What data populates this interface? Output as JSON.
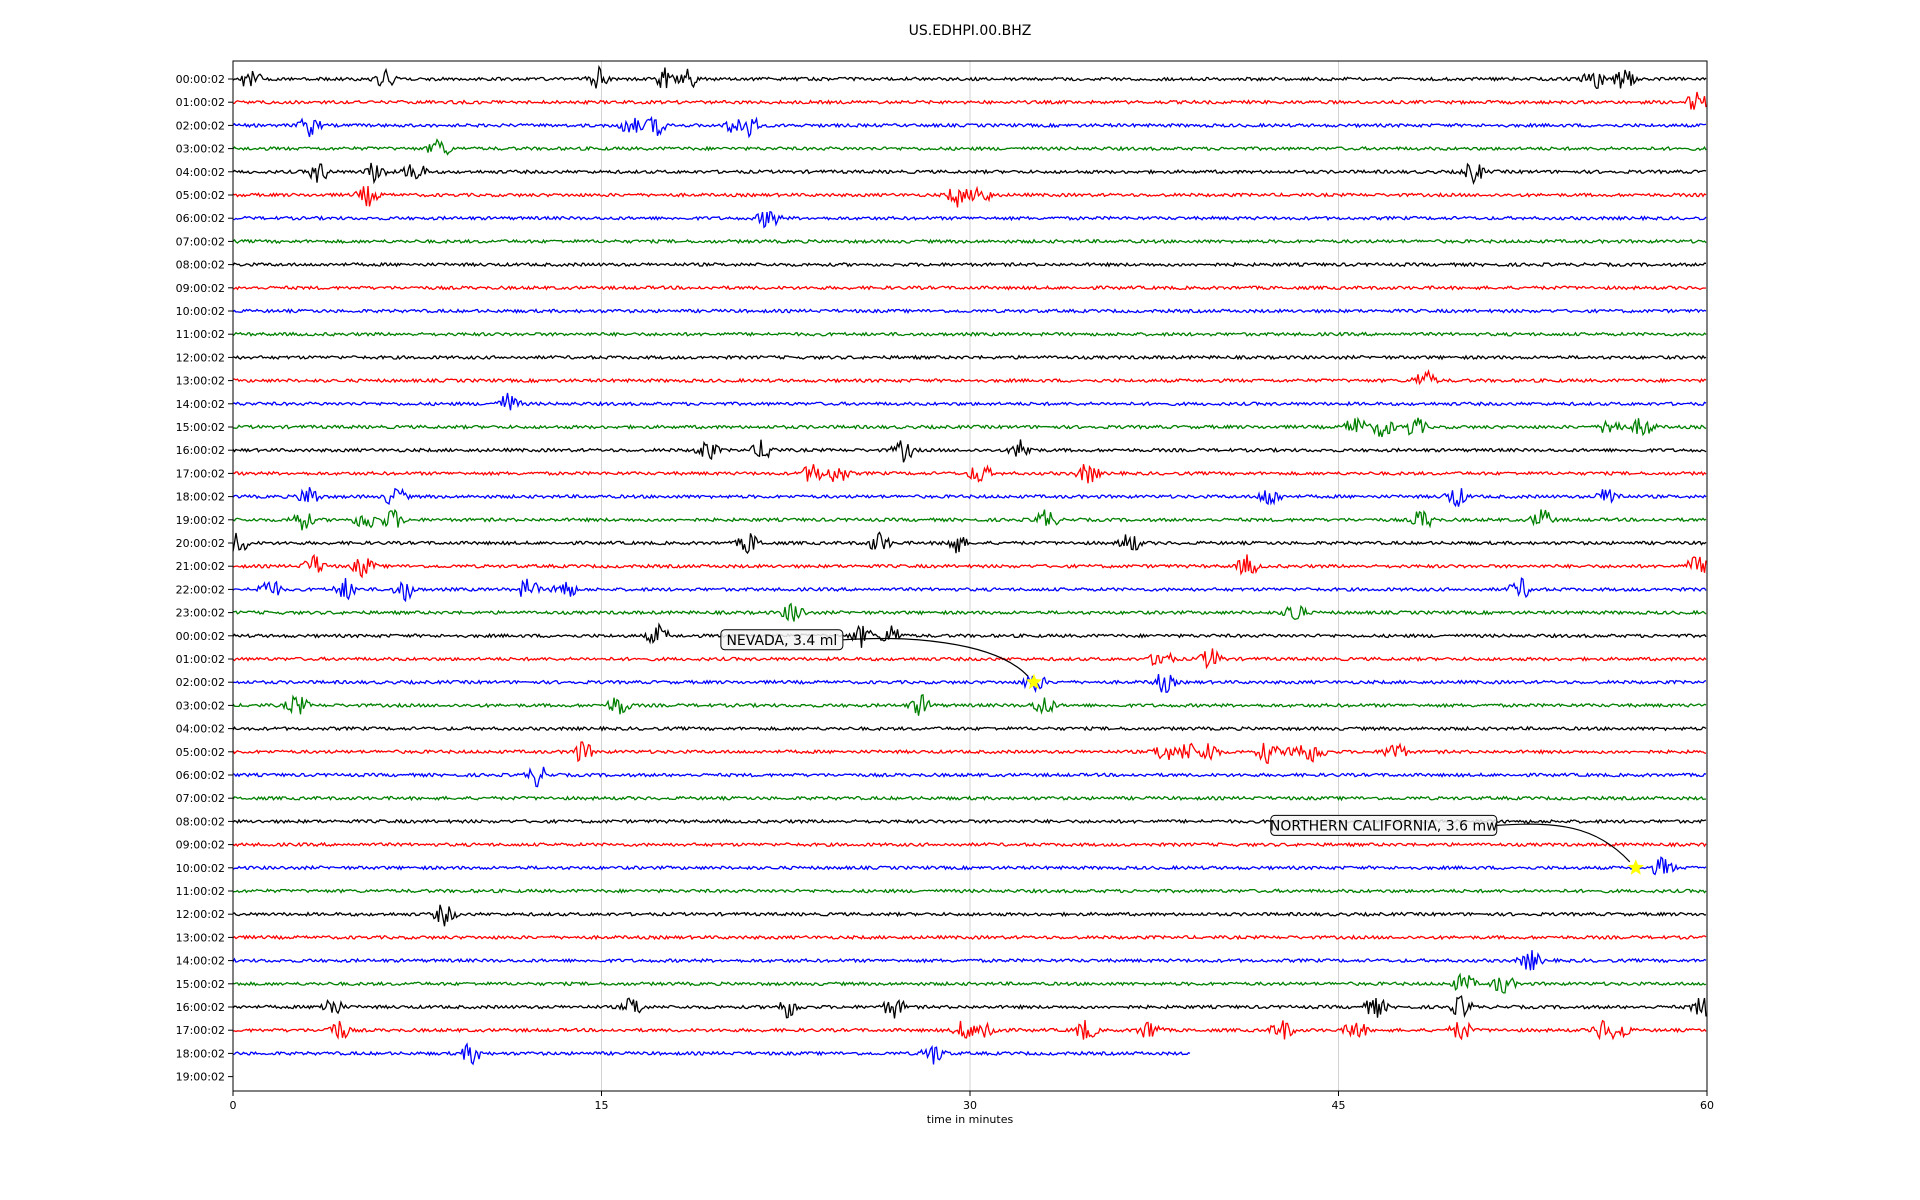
{
  "chart_data": {
    "type": "line",
    "title": "US.EDHPI.00.BHZ",
    "xlabel": "time in minutes",
    "ylabel": "",
    "xlim": [
      0,
      60
    ],
    "x_ticks": [
      0,
      15,
      30,
      45,
      60
    ],
    "grid": "vertical",
    "row_labels": [
      "00:00:02",
      "01:00:02",
      "02:00:02",
      "03:00:02",
      "04:00:02",
      "05:00:02",
      "06:00:02",
      "07:00:02",
      "08:00:02",
      "09:00:02",
      "10:00:02",
      "11:00:02",
      "12:00:02",
      "13:00:02",
      "14:00:02",
      "15:00:02",
      "16:00:02",
      "17:00:02",
      "18:00:02",
      "19:00:02",
      "20:00:02",
      "21:00:02",
      "22:00:02",
      "23:00:02",
      "00:00:02",
      "01:00:02",
      "02:00:02",
      "03:00:02",
      "04:00:02",
      "05:00:02",
      "06:00:02",
      "07:00:02",
      "08:00:02",
      "09:00:02",
      "10:00:02",
      "11:00:02",
      "12:00:02",
      "13:00:02",
      "14:00:02",
      "15:00:02",
      "16:00:02",
      "17:00:02",
      "18:00:02",
      "19:00:02"
    ],
    "trace_colors": [
      "#000000",
      "#ff0000",
      "#0000ff",
      "#008000"
    ],
    "last_trace_end_minute": 39,
    "events": [
      {
        "row": 0,
        "minutes": [
          0.7,
          6.2,
          14.9,
          17.6,
          18.5,
          55.4,
          56.6
        ]
      },
      {
        "row": 1,
        "minutes": [
          59.6
        ]
      },
      {
        "row": 2,
        "minutes": [
          3.1,
          16.2,
          17.2,
          20.5,
          21.0
        ]
      },
      {
        "row": 3,
        "minutes": [
          8.4
        ]
      },
      {
        "row": 4,
        "minutes": [
          3.5,
          5.8,
          7.4,
          50.5
        ]
      },
      {
        "row": 5,
        "minutes": [
          5.5,
          29.5,
          30.4
        ]
      },
      {
        "row": 6,
        "minutes": [
          21.8
        ]
      },
      {
        "row": 13,
        "minutes": [
          48.5
        ]
      },
      {
        "row": 14,
        "minutes": [
          11.2
        ]
      },
      {
        "row": 15,
        "minutes": [
          45.7,
          46.8,
          48.1,
          56.1,
          57.4
        ]
      },
      {
        "row": 16,
        "minutes": [
          19.3,
          21.6,
          27.3,
          32.1
        ]
      },
      {
        "row": 17,
        "minutes": [
          23.6,
          24.6,
          30.4,
          34.8
        ]
      },
      {
        "row": 18,
        "minutes": [
          3.1,
          6.6,
          42.2,
          49.8,
          56.0
        ]
      },
      {
        "row": 19,
        "minutes": [
          2.8,
          5.4,
          6.5,
          33.1,
          48.4,
          53.3
        ]
      },
      {
        "row": 20,
        "minutes": [
          0.2,
          21.0,
          26.3,
          29.4,
          36.5
        ]
      },
      {
        "row": 21,
        "minutes": [
          3.3,
          5.3,
          41.3,
          59.6
        ]
      },
      {
        "row": 22,
        "minutes": [
          1.5,
          4.6,
          7.0,
          12.0,
          13.5,
          52.4
        ]
      },
      {
        "row": 23,
        "minutes": [
          22.8,
          43.2
        ]
      },
      {
        "row": 24,
        "minutes": [
          17.3,
          25.6,
          26.8
        ]
      },
      {
        "row": 25,
        "minutes": [
          37.8,
          39.8
        ]
      },
      {
        "row": 26,
        "minutes": [
          32.6,
          37.9
        ]
      },
      {
        "row": 27,
        "minutes": [
          2.6,
          15.7,
          28.0,
          33.0
        ]
      },
      {
        "row": 29,
        "minutes": [
          14.2,
          37.9,
          38.8,
          39.7,
          42.1,
          43.3,
          44.0,
          47.3
        ]
      },
      {
        "row": 30,
        "minutes": [
          12.4
        ]
      },
      {
        "row": 34,
        "minutes": [
          58.2
        ]
      },
      {
        "row": 36,
        "minutes": [
          8.6
        ]
      },
      {
        "row": 38,
        "minutes": [
          52.8
        ]
      },
      {
        "row": 39,
        "minutes": [
          50.1,
          51.7
        ]
      },
      {
        "row": 40,
        "minutes": [
          4.0,
          16.3,
          22.6,
          26.9,
          46.5,
          50.0,
          59.8
        ]
      },
      {
        "row": 41,
        "minutes": [
          4.3,
          29.8,
          30.7,
          34.7,
          37.3,
          42.7,
          45.7,
          50.0,
          55.8,
          56.4
        ]
      },
      {
        "row": 42,
        "minutes": [
          9.7,
          28.5
        ]
      }
    ],
    "annotations": [
      {
        "text": "NEVADA, 3.4 ml",
        "row": 26,
        "minute": 32.6,
        "marker": "star",
        "marker_color": "#ffff00"
      },
      {
        "text": "NORTHERN CALIFORNIA, 3.6 mw",
        "row": 34,
        "minute": 57.1,
        "marker": "star",
        "marker_color": "#ffff00"
      }
    ]
  }
}
